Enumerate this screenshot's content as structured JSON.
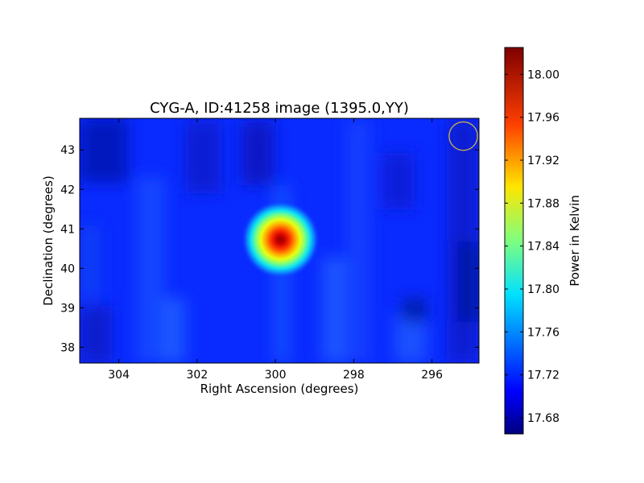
{
  "chart_data": {
    "type": "heatmap",
    "title": "CYG-A, ID:41258 image (1395.0,YY)",
    "xlabel": "Right Ascension (degrees)",
    "ylabel": "Declination (degrees)",
    "colorbar_label": "Power in Kelvin",
    "x_axis_inverted": true,
    "xlim": [
      305.0,
      294.8
    ],
    "ylim": [
      37.6,
      43.8
    ],
    "xticks": [
      304,
      302,
      300,
      298,
      296
    ],
    "xtick_labels": [
      "304",
      "302",
      "300",
      "298",
      "296"
    ],
    "yticks": [
      38,
      39,
      40,
      41,
      42,
      43
    ],
    "ytick_labels": [
      "38",
      "39",
      "40",
      "41",
      "42",
      "43"
    ],
    "colorbar_range": [
      17.665,
      18.025
    ],
    "colorbar_ticks": [
      17.68,
      17.72,
      17.76,
      17.8,
      17.84,
      17.88,
      17.92,
      17.96,
      18.0
    ],
    "colorbar_tick_labels": [
      "17.68",
      "17.72",
      "17.76",
      "17.80",
      "17.84",
      "17.88",
      "17.92",
      "17.96",
      "18.00"
    ],
    "colormap": "jet",
    "background_level": 17.715,
    "source": {
      "ra": 299.87,
      "dec": 40.73,
      "peak": 18.02
    },
    "beam_marker": {
      "ra": 295.2,
      "dec": 43.35,
      "radius_deg": 0.36,
      "color": "#c8b44a"
    },
    "grid": false
  }
}
